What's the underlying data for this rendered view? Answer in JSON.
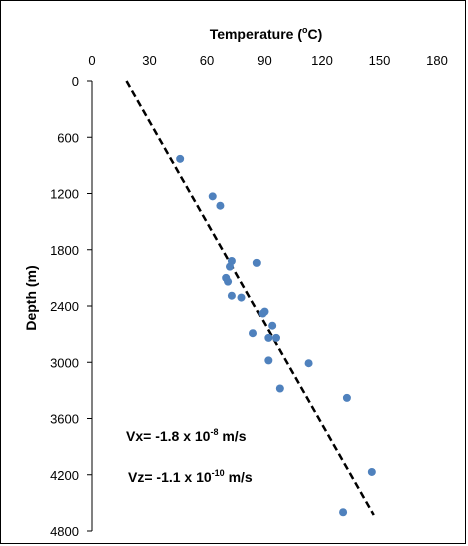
{
  "chart_data": {
    "type": "scatter",
    "x_axis": {
      "label_prefix": "Temperature (",
      "label_sup": "o",
      "label_suffix": "C)",
      "position": "top",
      "ticks": [
        0,
        30,
        60,
        90,
        120,
        150,
        180
      ],
      "range": [
        0,
        180
      ]
    },
    "y_axis": {
      "label": "Depth (m)",
      "ticks": [
        0,
        600,
        1200,
        1800,
        2400,
        3000,
        3600,
        4200,
        4800
      ],
      "range": [
        0,
        4800
      ],
      "inverted": true
    },
    "series": [
      {
        "color": "#4F81BD",
        "points": [
          {
            "x": 46,
            "y": 830
          },
          {
            "x": 63,
            "y": 1230
          },
          {
            "x": 67,
            "y": 1330
          },
          {
            "x": 73,
            "y": 1920
          },
          {
            "x": 72,
            "y": 1980
          },
          {
            "x": 86,
            "y": 1940
          },
          {
            "x": 70,
            "y": 2100
          },
          {
            "x": 71,
            "y": 2140
          },
          {
            "x": 73,
            "y": 2290
          },
          {
            "x": 78,
            "y": 2310
          },
          {
            "x": 90,
            "y": 2460
          },
          {
            "x": 89,
            "y": 2480
          },
          {
            "x": 94,
            "y": 2610
          },
          {
            "x": 84,
            "y": 2690
          },
          {
            "x": 92,
            "y": 2740
          },
          {
            "x": 96,
            "y": 2740
          },
          {
            "x": 92,
            "y": 2980
          },
          {
            "x": 113,
            "y": 3010
          },
          {
            "x": 98,
            "y": 3280
          },
          {
            "x": 133,
            "y": 3380
          },
          {
            "x": 146,
            "y": 4170
          },
          {
            "x": 131,
            "y": 4600
          }
        ]
      }
    ],
    "trendline": {
      "style": "dashed",
      "color": "#000000",
      "points": [
        {
          "x": 18,
          "y": 0
        },
        {
          "x": 147,
          "y": 4630
        }
      ]
    },
    "annotations": [
      {
        "id": "vx",
        "prefix": "Vx= -1.8 x 10",
        "sup": "-8",
        "suffix": " m/s"
      },
      {
        "id": "vz",
        "prefix": "Vz= -1.1 x 10",
        "sup": "-10",
        "suffix": " m/s"
      }
    ],
    "grid": false,
    "legend": "none"
  }
}
